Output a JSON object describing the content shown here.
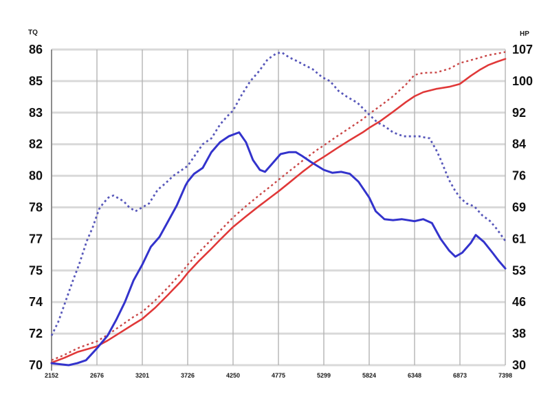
{
  "page": {
    "background": "#ffffff",
    "left_axis_unit": "TQ",
    "right_axis_unit": "HP"
  },
  "chart_data": {
    "type": "line",
    "title": "",
    "grid": true,
    "legend": "none",
    "x_axis": {
      "range": [
        2152,
        7398
      ],
      "tick_labels": [
        "2152",
        "2676",
        "3201",
        "3726",
        "4250",
        "4775",
        "5299",
        "5824",
        "6348",
        "6873",
        "7398"
      ]
    },
    "left_axis": {
      "unit": "TQ",
      "range": [
        70,
        86
      ],
      "tick_labels_top_to_bottom": [
        "86",
        "85",
        "83",
        "82",
        "80",
        "78",
        "77",
        "75",
        "74",
        "72",
        "70"
      ]
    },
    "right_axis": {
      "unit": "HP",
      "range": [
        30,
        107
      ],
      "tick_labels_top_to_bottom": [
        "107",
        "100",
        "92",
        "84",
        "76",
        "69",
        "61",
        "53",
        "46",
        "38",
        "30"
      ]
    },
    "colors": {
      "grid_horizontal": "#d9d9d9",
      "grid_vertical": "#b3b3b3",
      "axis_line": "#8c8c8c",
      "torque_solid": "#3333cc",
      "torque_dashed": "#5858ba",
      "hp_solid": "#e03838",
      "hp_dashed": "#c94545"
    },
    "series": [
      {
        "name": "hp-solid-run",
        "axis": "right",
        "style": "solid",
        "color_key": "hp_solid",
        "width": 2.6,
        "points": [
          [
            2152,
            30.6
          ],
          [
            2300,
            31.8
          ],
          [
            2450,
            33.2
          ],
          [
            2550,
            33.8
          ],
          [
            2676,
            34.6
          ],
          [
            2800,
            36.0
          ],
          [
            2950,
            38.0
          ],
          [
            3100,
            40.0
          ],
          [
            3201,
            41.3
          ],
          [
            3350,
            44.0
          ],
          [
            3500,
            47.2
          ],
          [
            3650,
            50.5
          ],
          [
            3726,
            52.5
          ],
          [
            3850,
            55.3
          ],
          [
            3980,
            58.0
          ],
          [
            4100,
            60.6
          ],
          [
            4250,
            63.7
          ],
          [
            4400,
            66.3
          ],
          [
            4550,
            68.8
          ],
          [
            4700,
            71.2
          ],
          [
            4775,
            72.4
          ],
          [
            4900,
            74.5
          ],
          [
            5050,
            77.1
          ],
          [
            5200,
            79.5
          ],
          [
            5299,
            80.8
          ],
          [
            5450,
            82.9
          ],
          [
            5600,
            84.9
          ],
          [
            5750,
            86.8
          ],
          [
            5824,
            87.9
          ],
          [
            5950,
            89.5
          ],
          [
            6100,
            91.8
          ],
          [
            6250,
            94.2
          ],
          [
            6348,
            95.6
          ],
          [
            6450,
            96.6
          ],
          [
            6600,
            97.4
          ],
          [
            6750,
            97.9
          ],
          [
            6873,
            98.6
          ],
          [
            7000,
            100.6
          ],
          [
            7100,
            102.0
          ],
          [
            7200,
            103.2
          ],
          [
            7300,
            104.0
          ],
          [
            7398,
            104.7
          ]
        ]
      },
      {
        "name": "hp-dashed-run",
        "axis": "right",
        "style": "dashed",
        "color_key": "hp_dashed",
        "width": 2.4,
        "points": [
          [
            2152,
            31.2
          ],
          [
            2300,
            32.5
          ],
          [
            2450,
            34.1
          ],
          [
            2550,
            34.9
          ],
          [
            2676,
            35.8
          ],
          [
            2800,
            37.4
          ],
          [
            2950,
            39.6
          ],
          [
            3100,
            41.8
          ],
          [
            3201,
            43.0
          ],
          [
            3350,
            45.8
          ],
          [
            3500,
            49.0
          ],
          [
            3650,
            52.5
          ],
          [
            3726,
            54.5
          ],
          [
            3850,
            57.4
          ],
          [
            3980,
            60.2
          ],
          [
            4100,
            62.8
          ],
          [
            4250,
            66.0
          ],
          [
            4400,
            68.8
          ],
          [
            4550,
            71.4
          ],
          [
            4700,
            73.9
          ],
          [
            4775,
            75.2
          ],
          [
            4900,
            77.3
          ],
          [
            5050,
            79.8
          ],
          [
            5200,
            82.2
          ],
          [
            5299,
            83.6
          ],
          [
            5450,
            85.8
          ],
          [
            5600,
            87.9
          ],
          [
            5750,
            90.0
          ],
          [
            5824,
            91.3
          ],
          [
            5950,
            93.2
          ],
          [
            6100,
            95.6
          ],
          [
            6250,
            98.5
          ],
          [
            6348,
            100.8
          ],
          [
            6450,
            101.3
          ],
          [
            6600,
            101.4
          ],
          [
            6750,
            102.3
          ],
          [
            6873,
            103.7
          ],
          [
            7000,
            104.4
          ],
          [
            7100,
            105.0
          ],
          [
            7200,
            105.6
          ],
          [
            7300,
            106.0
          ],
          [
            7398,
            106.4
          ]
        ]
      },
      {
        "name": "torque-dashed-run",
        "axis": "left",
        "style": "dashed",
        "color_key": "torque_dashed",
        "width": 2.8,
        "points": [
          [
            2152,
            71.5
          ],
          [
            2230,
            72.2
          ],
          [
            2311,
            73.2
          ],
          [
            2400,
            74.3
          ],
          [
            2470,
            75.1
          ],
          [
            2560,
            76.3
          ],
          [
            2629,
            77.0
          ],
          [
            2700,
            77.9
          ],
          [
            2748,
            78.2
          ],
          [
            2810,
            78.5
          ],
          [
            2867,
            78.6
          ],
          [
            2930,
            78.45
          ],
          [
            2987,
            78.3
          ],
          [
            3050,
            78.0
          ],
          [
            3122,
            77.8
          ],
          [
            3201,
            78.0
          ],
          [
            3280,
            78.2
          ],
          [
            3380,
            78.9
          ],
          [
            3464,
            79.2
          ],
          [
            3560,
            79.6
          ],
          [
            3660,
            79.9
          ],
          [
            3726,
            80.1
          ],
          [
            3820,
            80.7
          ],
          [
            3900,
            81.2
          ],
          [
            4000,
            81.5
          ],
          [
            4100,
            82.2
          ],
          [
            4180,
            82.6
          ],
          [
            4250,
            82.9
          ],
          [
            4350,
            83.7
          ],
          [
            4450,
            84.4
          ],
          [
            4550,
            84.9
          ],
          [
            4650,
            85.5
          ],
          [
            4750,
            85.8
          ],
          [
            4814,
            85.85
          ],
          [
            4900,
            85.6
          ],
          [
            4973,
            85.45
          ],
          [
            5080,
            85.2
          ],
          [
            5172,
            85.0
          ],
          [
            5280,
            84.6
          ],
          [
            5371,
            84.4
          ],
          [
            5470,
            83.9
          ],
          [
            5569,
            83.6
          ],
          [
            5689,
            83.3
          ],
          [
            5824,
            82.7
          ],
          [
            5920,
            82.3
          ],
          [
            6007,
            82.1
          ],
          [
            6100,
            81.8
          ],
          [
            6221,
            81.6
          ],
          [
            6300,
            81.6
          ],
          [
            6404,
            81.6
          ],
          [
            6460,
            81.55
          ],
          [
            6523,
            81.5
          ],
          [
            6600,
            80.9
          ],
          [
            6643,
            80.5
          ],
          [
            6746,
            79.4
          ],
          [
            6810,
            78.9
          ],
          [
            6873,
            78.5
          ],
          [
            6950,
            78.2
          ],
          [
            7040,
            78.05
          ],
          [
            7130,
            77.6
          ],
          [
            7223,
            77.3
          ],
          [
            7300,
            76.9
          ],
          [
            7398,
            76.3
          ]
        ]
      },
      {
        "name": "torque-solid-run",
        "axis": "left",
        "style": "solid",
        "color_key": "torque_solid",
        "width": 3,
        "points": [
          [
            2152,
            70.1
          ],
          [
            2250,
            70.05
          ],
          [
            2350,
            70.0
          ],
          [
            2450,
            70.1
          ],
          [
            2550,
            70.25
          ],
          [
            2676,
            70.85
          ],
          [
            2800,
            71.5
          ],
          [
            2900,
            72.3
          ],
          [
            3000,
            73.2
          ],
          [
            3100,
            74.3
          ],
          [
            3201,
            75.1
          ],
          [
            3300,
            76.0
          ],
          [
            3400,
            76.5
          ],
          [
            3500,
            77.3
          ],
          [
            3600,
            78.1
          ],
          [
            3700,
            79.1
          ],
          [
            3726,
            79.3
          ],
          [
            3800,
            79.7
          ],
          [
            3900,
            80.0
          ],
          [
            4000,
            80.8
          ],
          [
            4100,
            81.3
          ],
          [
            4200,
            81.6
          ],
          [
            4320,
            81.8
          ],
          [
            4400,
            81.3
          ],
          [
            4480,
            80.4
          ],
          [
            4560,
            79.9
          ],
          [
            4620,
            79.8
          ],
          [
            4700,
            80.2
          ],
          [
            4800,
            80.7
          ],
          [
            4900,
            80.8
          ],
          [
            4975,
            80.8
          ],
          [
            5050,
            80.6
          ],
          [
            5150,
            80.3
          ],
          [
            5299,
            79.9
          ],
          [
            5400,
            79.75
          ],
          [
            5500,
            79.8
          ],
          [
            5600,
            79.7
          ],
          [
            5700,
            79.3
          ],
          [
            5824,
            78.5
          ],
          [
            5900,
            77.8
          ],
          [
            6000,
            77.4
          ],
          [
            6100,
            77.35
          ],
          [
            6200,
            77.4
          ],
          [
            6348,
            77.3
          ],
          [
            6450,
            77.4
          ],
          [
            6550,
            77.2
          ],
          [
            6650,
            76.4
          ],
          [
            6750,
            75.8
          ],
          [
            6820,
            75.5
          ],
          [
            6900,
            75.7
          ],
          [
            7000,
            76.2
          ],
          [
            7056,
            76.6
          ],
          [
            7150,
            76.25
          ],
          [
            7250,
            75.7
          ],
          [
            7320,
            75.3
          ],
          [
            7398,
            74.9
          ]
        ]
      }
    ]
  }
}
